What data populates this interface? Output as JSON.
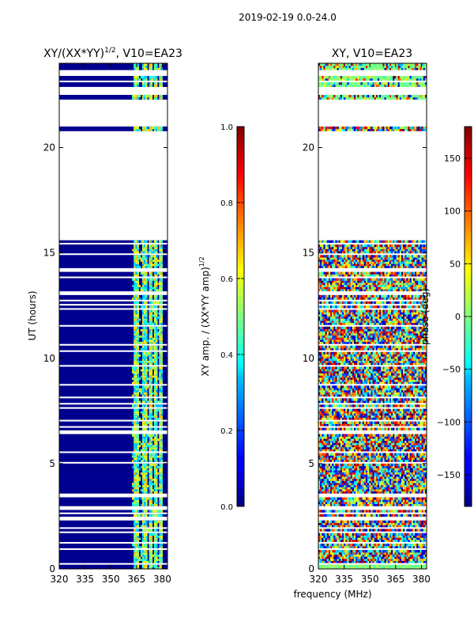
{
  "chart_data": {
    "type": "heatmap",
    "suptitle": "2019-02-19 0.0-24.0",
    "xlabel": "frequency (MHz)",
    "panels": [
      {
        "id": "amp",
        "title_main": "XY/(XX*YY)",
        "title_sup": "1/2",
        "title_tail": ", V10=EA23",
        "ylabel": "UT (hours)",
        "xlim": [
          320,
          383
        ],
        "ylim": [
          0,
          24
        ],
        "xticks": [
          320,
          335,
          350,
          365,
          380
        ],
        "yticks": [
          0,
          5,
          10,
          15,
          20
        ],
        "colormap": "jet",
        "colorbar": {
          "label_main": "XY amp. / (XX*YY amp)",
          "label_sup": "1/2",
          "range": [
            0.0,
            1.0
          ],
          "ticks": [
            "0.0",
            "0.2",
            "0.4",
            "0.6",
            "0.8",
            "1.0"
          ]
        }
      },
      {
        "id": "phase",
        "title_main": "XY, V10=EA23",
        "ylabel": "",
        "xlim": [
          320,
          383
        ],
        "ylim": [
          0,
          24
        ],
        "xticks": [
          320,
          335,
          350,
          365,
          380
        ],
        "yticks": [
          0,
          5,
          10,
          15,
          20
        ],
        "colormap": "jet",
        "colorbar": {
          "label_main": "phase (deg)",
          "range": [
            -180,
            180
          ],
          "ticks": [
            "−150",
            "−100",
            "−50",
            "0",
            "50",
            "100",
            "150"
          ]
        }
      }
    ],
    "data_gaps_ut_hours": [
      [
        0.25,
        0.35
      ],
      [
        0.9,
        1.0
      ],
      [
        1.2,
        1.3
      ],
      [
        1.7,
        1.8
      ],
      [
        1.9,
        2.0
      ],
      [
        2.3,
        2.5
      ],
      [
        2.65,
        2.75
      ],
      [
        2.85,
        3.0
      ],
      [
        3.45,
        3.6
      ],
      [
        3.7,
        3.75
      ],
      [
        4.7,
        4.75
      ],
      [
        5.05,
        5.1
      ],
      [
        5.55,
        5.6
      ],
      [
        6.45,
        6.6
      ],
      [
        6.75,
        6.85
      ],
      [
        7.05,
        7.1
      ],
      [
        7.3,
        7.35
      ],
      [
        7.65,
        7.7
      ],
      [
        7.85,
        7.9
      ],
      [
        8.1,
        8.2
      ],
      [
        8.5,
        8.55
      ],
      [
        8.75,
        8.85
      ],
      [
        9.1,
        9.15
      ],
      [
        9.3,
        9.35
      ],
      [
        9.65,
        9.7
      ],
      [
        10.3,
        10.4
      ],
      [
        10.6,
        10.7
      ],
      [
        11.1,
        11.15
      ],
      [
        11.55,
        11.6
      ],
      [
        11.8,
        11.85
      ],
      [
        12.3,
        12.4
      ],
      [
        12.5,
        12.6
      ],
      [
        12.75,
        12.8
      ],
      [
        13.0,
        13.1
      ],
      [
        13.15,
        13.25
      ],
      [
        13.85,
        13.95
      ],
      [
        14.15,
        14.3
      ],
      [
        14.7,
        14.75
      ],
      [
        14.95,
        15.0
      ],
      [
        15.4,
        15.5
      ],
      [
        15.6,
        19.3
      ],
      [
        19.35,
        20.7
      ],
      [
        20.75,
        20.85
      ],
      [
        21.0,
        22.3
      ],
      [
        22.5,
        22.9
      ],
      [
        23.1,
        23.25
      ],
      [
        23.45,
        23.7
      ]
    ],
    "amp_band_channels_mhz": [
      363,
      364,
      365,
      368,
      369,
      370,
      372,
      373,
      375,
      376,
      378,
      379
    ]
  }
}
